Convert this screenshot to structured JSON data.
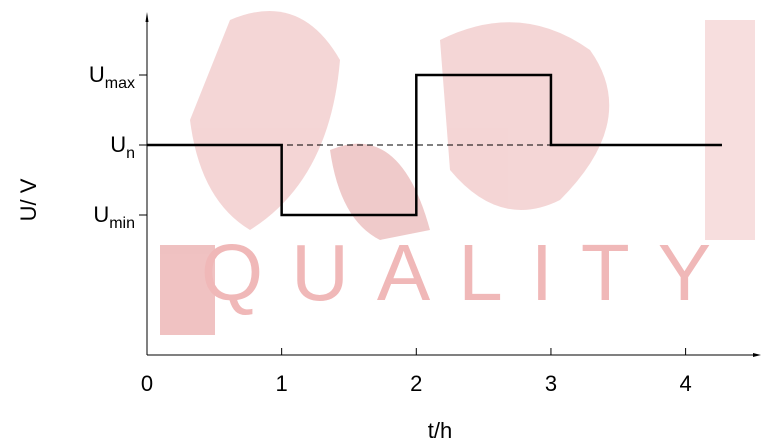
{
  "chart_data": {
    "type": "line",
    "x_label": "t/h",
    "y_label": "U/ V",
    "x": [
      0,
      1,
      1,
      2,
      2,
      3,
      3,
      4.27
    ],
    "series": [
      {
        "color": "#000000",
        "values": [
          3,
          3,
          2,
          2,
          4,
          4,
          3,
          3
        ]
      }
    ],
    "reference_line": {
      "value": 3,
      "style": "dashed"
    },
    "xlim": [
      0,
      4.56
    ],
    "xticks": [
      0,
      1,
      2,
      3,
      4
    ],
    "ylim": [
      0,
      5
    ],
    "yticks": [
      {
        "value": 2,
        "label": "U",
        "subscript": "min"
      },
      {
        "value": 3,
        "label": "U",
        "subscript": "n"
      },
      {
        "value": 4,
        "label": "U",
        "subscript": "max"
      }
    ],
    "watermark": "QUALITY"
  }
}
